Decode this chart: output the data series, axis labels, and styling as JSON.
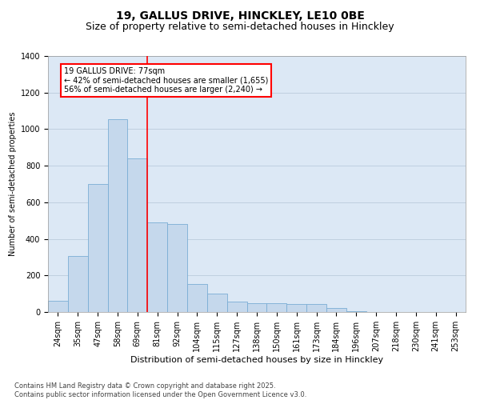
{
  "title1": "19, GALLUS DRIVE, HINCKLEY, LE10 0BE",
  "title2": "Size of property relative to semi-detached houses in Hinckley",
  "xlabel": "Distribution of semi-detached houses by size in Hinckley",
  "ylabel": "Number of semi-detached properties",
  "categories": [
    "24sqm",
    "35sqm",
    "47sqm",
    "58sqm",
    "69sqm",
    "81sqm",
    "92sqm",
    "104sqm",
    "115sqm",
    "127sqm",
    "138sqm",
    "150sqm",
    "161sqm",
    "173sqm",
    "184sqm",
    "196sqm",
    "207sqm",
    "218sqm",
    "230sqm",
    "241sqm",
    "253sqm"
  ],
  "values": [
    60,
    305,
    700,
    1055,
    840,
    490,
    480,
    155,
    100,
    55,
    50,
    50,
    45,
    45,
    20,
    5,
    0,
    0,
    0,
    0,
    0
  ],
  "bar_color": "#c5d8ec",
  "bar_edgecolor": "#7aadd4",
  "vline_x_index": 4,
  "annotation_text_line1": "19 GALLUS DRIVE: 77sqm",
  "annotation_text_line2": "← 42% of semi-detached houses are smaller (1,655)",
  "annotation_text_line3": "56% of semi-detached houses are larger (2,240) →",
  "annotation_box_color": "white",
  "annotation_box_edgecolor": "red",
  "ylim": [
    0,
    1400
  ],
  "yticks": [
    0,
    200,
    400,
    600,
    800,
    1000,
    1200,
    1400
  ],
  "grid_color": "#c0d0e0",
  "background_color": "#dce8f5",
  "footer": "Contains HM Land Registry data © Crown copyright and database right 2025.\nContains public sector information licensed under the Open Government Licence v3.0.",
  "title_fontsize": 10,
  "subtitle_fontsize": 9,
  "xlabel_fontsize": 8,
  "ylabel_fontsize": 7,
  "tick_fontsize": 7,
  "annot_fontsize": 7,
  "footer_fontsize": 6
}
